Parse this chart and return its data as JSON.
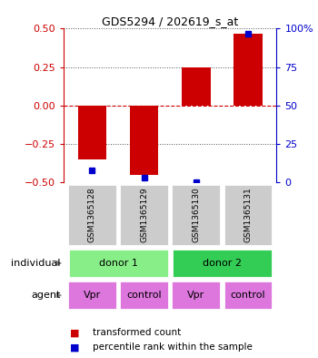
{
  "title": "GDS5294 / 202619_s_at",
  "samples": [
    "GSM1365128",
    "GSM1365129",
    "GSM1365130",
    "GSM1365131"
  ],
  "red_bars": [
    -0.35,
    -0.45,
    0.25,
    0.47
  ],
  "blue_squares": [
    -0.42,
    -0.47,
    -0.495,
    0.47
  ],
  "ylim_left": [
    -0.5,
    0.5
  ],
  "ylim_right": [
    0,
    100
  ],
  "yticks_left": [
    -0.5,
    -0.25,
    0,
    0.25,
    0.5
  ],
  "yticks_right": [
    0,
    25,
    50,
    75,
    100
  ],
  "ytick_labels_right": [
    "0",
    "25",
    "50",
    "75",
    "100%"
  ],
  "bar_color": "#cc0000",
  "square_color": "#0000cc",
  "dashed_line_color": "#cc0000",
  "dotted_line_color": "#555555",
  "individual_colors": [
    "#88ee88",
    "#33cc55"
  ],
  "agent_color": "#dd77dd",
  "sample_box_color": "#cccccc",
  "legend_red": "transformed count",
  "legend_blue": "percentile rank within the sample"
}
